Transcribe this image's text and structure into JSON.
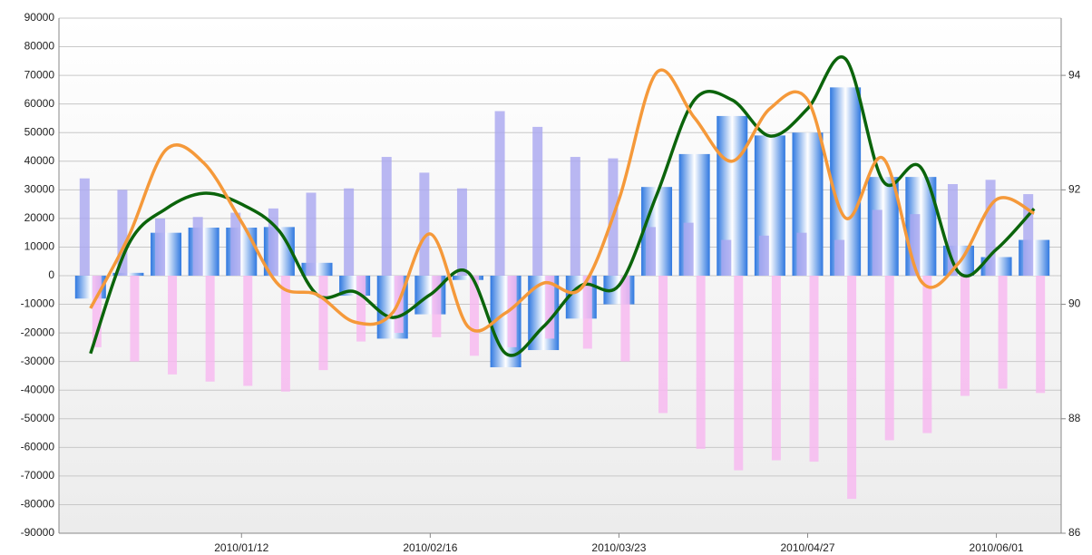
{
  "chart_data": {
    "type": "bar",
    "categories": [
      null,
      null,
      null,
      null,
      "2010/01/12",
      null,
      null,
      null,
      null,
      "2010/02/16",
      null,
      null,
      null,
      null,
      "2010/03/23",
      null,
      null,
      null,
      null,
      "2010/04/27",
      null,
      null,
      null,
      null,
      "2010/06/01",
      null
    ],
    "ylim": [
      -90000,
      90000
    ],
    "yticks": [
      -90000,
      -80000,
      -70000,
      -60000,
      -50000,
      -40000,
      -30000,
      -20000,
      -10000,
      0,
      10000,
      20000,
      30000,
      40000,
      50000,
      60000,
      70000,
      80000,
      90000
    ],
    "y2lim": [
      86,
      95
    ],
    "y2ticks": [
      86,
      88,
      90,
      92,
      94
    ],
    "grid": true,
    "series": [
      {
        "type": "bar",
        "color": "#2f78e0",
        "values": [
          -8000,
          1000,
          15000,
          16800,
          16800,
          17000,
          4500,
          -7000,
          -22000,
          -13500,
          -1500,
          -32000,
          -26000,
          -15000,
          -10000,
          31000,
          42500,
          55800,
          49000,
          50000,
          65800,
          34500,
          34500,
          10500,
          6500,
          12500
        ]
      },
      {
        "type": "bar",
        "color": "#a9a6f0",
        "values": [
          34000,
          30000,
          20000,
          20500,
          22000,
          23500,
          29000,
          30500,
          41500,
          36000,
          30500,
          57500,
          52000,
          41500,
          41000,
          17000,
          18500,
          12500,
          14000,
          15000,
          12500,
          23000,
          21500,
          32000,
          33500,
          28500
        ]
      },
      {
        "type": "bar",
        "color": "#f7b6f0",
        "values": [
          -25000,
          -30000,
          -34500,
          -37000,
          -38500,
          -40500,
          -33000,
          -23000,
          -20000,
          -21500,
          -28000,
          -25000,
          -22000,
          -25500,
          -30000,
          -48000,
          -60500,
          -68000,
          -64500,
          -65000,
          -78000,
          -57500,
          -55000,
          -42000,
          -39500,
          -41000
        ]
      },
      {
        "type": "line",
        "axis": "y2",
        "color": "#0b640b",
        "values": [
          89.14,
          91.04,
          91.67,
          91.94,
          91.75,
          91.28,
          90.17,
          90.22,
          89.77,
          90.17,
          90.56,
          89.14,
          89.61,
          90.33,
          90.33,
          91.91,
          93.57,
          93.57,
          92.94,
          93.42,
          94.29,
          92.15,
          92.39,
          90.56,
          90.96,
          91.67
        ]
      },
      {
        "type": "line",
        "axis": "y2",
        "color": "#f5993a",
        "values": [
          89.93,
          91.17,
          92.7,
          92.47,
          91.44,
          90.33,
          90.17,
          89.69,
          89.85,
          91.23,
          89.61,
          89.85,
          90.37,
          90.28,
          91.83,
          94.05,
          93.26,
          92.5,
          93.42,
          93.57,
          91.51,
          92.55,
          90.41,
          90.72,
          91.83,
          91.59
        ]
      }
    ]
  }
}
